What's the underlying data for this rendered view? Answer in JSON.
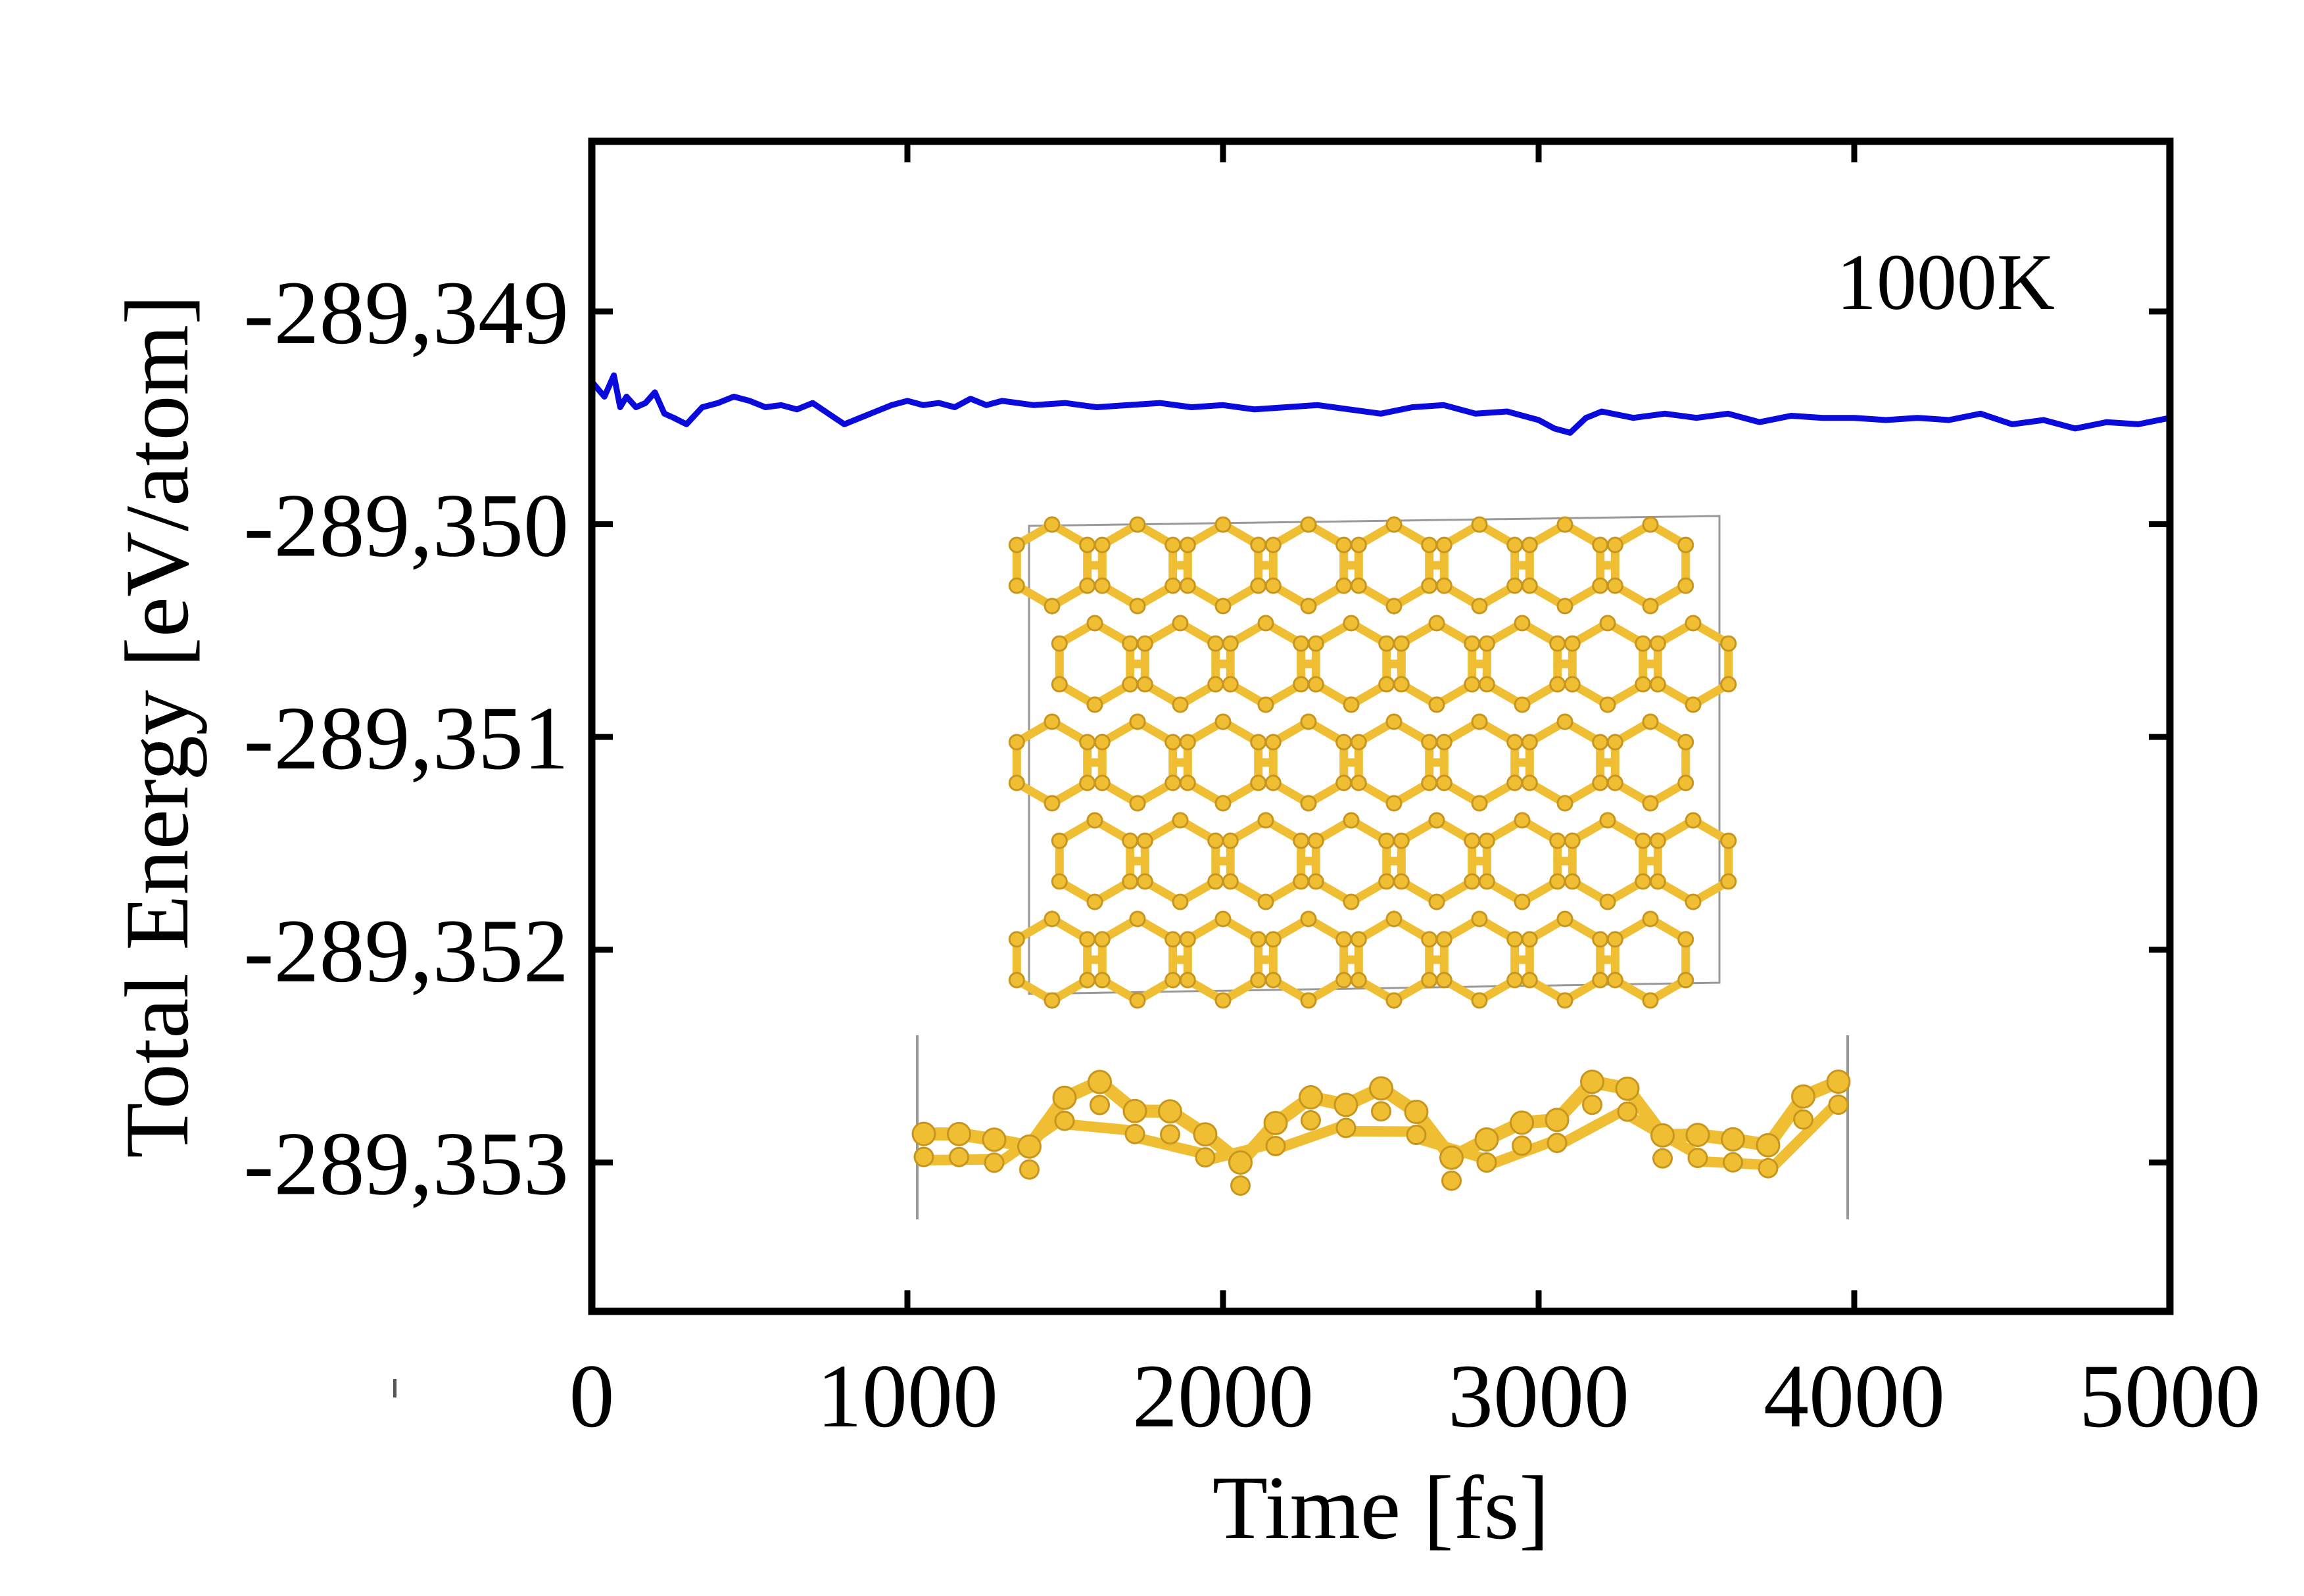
{
  "chart_data": {
    "type": "line",
    "title": "",
    "xlabel": "Time [fs]",
    "ylabel": "Total Energy [eV/atom]",
    "xlim": [
      0,
      5000
    ],
    "ylim": [
      -289.3537,
      -289.3482
    ],
    "xticks": [
      0,
      1000,
      2000,
      3000,
      4000,
      5000
    ],
    "xtick_labels": [
      "0",
      "1000",
      "2000",
      "3000",
      "4000",
      "5000"
    ],
    "yticks": [
      -289.349,
      -289.35,
      -289.351,
      -289.352,
      -289.353
    ],
    "ytick_labels": [
      "-289,349",
      "-289,350",
      "-289,351",
      "-289,352",
      "-289,353"
    ],
    "grid": false,
    "annotation": "1000K",
    "series": [
      {
        "name": "Total Energy",
        "color": "#0a0adc",
        "x": [
          0,
          40,
          70,
          90,
          110,
          140,
          170,
          200,
          230,
          260,
          300,
          350,
          400,
          450,
          500,
          550,
          600,
          650,
          700,
          750,
          800,
          850,
          900,
          950,
          1000,
          1050,
          1100,
          1150,
          1200,
          1250,
          1300,
          1400,
          1500,
          1600,
          1700,
          1800,
          1900,
          2000,
          2100,
          2200,
          2300,
          2400,
          2500,
          2600,
          2700,
          2800,
          2900,
          3000,
          3050,
          3100,
          3150,
          3200,
          3300,
          3400,
          3500,
          3600,
          3700,
          3800,
          3900,
          4000,
          4100,
          4200,
          4300,
          4400,
          4500,
          4600,
          4700,
          4800,
          4900,
          5000
        ],
        "y": [
          -289.34933,
          -289.3494,
          -289.3493,
          -289.34945,
          -289.3494,
          -289.34945,
          -289.34943,
          -289.34938,
          -289.34948,
          -289.3495,
          -289.34953,
          -289.34945,
          -289.34943,
          -289.3494,
          -289.34942,
          -289.34945,
          -289.34944,
          -289.34946,
          -289.34943,
          -289.34948,
          -289.34953,
          -289.3495,
          -289.34947,
          -289.34944,
          -289.34942,
          -289.34944,
          -289.34943,
          -289.34945,
          -289.34941,
          -289.34944,
          -289.34942,
          -289.34944,
          -289.34943,
          -289.34945,
          -289.34944,
          -289.34943,
          -289.34945,
          -289.34944,
          -289.34946,
          -289.34945,
          -289.34944,
          -289.34946,
          -289.34948,
          -289.34945,
          -289.34944,
          -289.34948,
          -289.34947,
          -289.34951,
          -289.34955,
          -289.34957,
          -289.3495,
          -289.34947,
          -289.3495,
          -289.34948,
          -289.3495,
          -289.34948,
          -289.34952,
          -289.34949,
          -289.3495,
          -289.3495,
          -289.34951,
          -289.3495,
          -289.34951,
          -289.34948,
          -289.34953,
          -289.34951,
          -289.34955,
          -289.34952,
          -289.34953,
          -289.3495
        ]
      }
    ]
  },
  "inset": {
    "top_view": "top-view-structure",
    "side_view": "side-view-structure",
    "atom_color": "#f0be32"
  }
}
